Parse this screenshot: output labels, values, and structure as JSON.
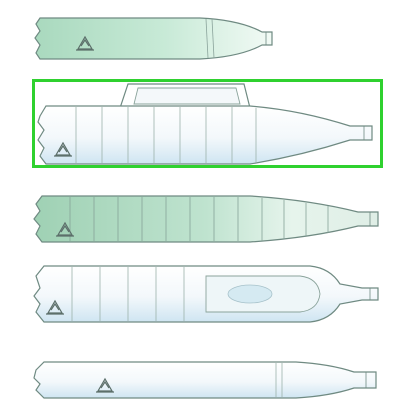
{
  "colors": {
    "outline": "#6f8a82",
    "green_tint": "#bfe3cf",
    "blue_tint": "#dcecf6",
    "white": "#ffffff",
    "selection": "#2fd12f"
  },
  "bottles": [
    {
      "id": "bottle-1",
      "style": "smooth-tall",
      "tint": "green",
      "selected": false
    },
    {
      "id": "bottle-2",
      "style": "ribbed-with-handle",
      "tint": "blue",
      "selected": true
    },
    {
      "id": "bottle-3",
      "style": "ribbed-large",
      "tint": "green",
      "selected": false
    },
    {
      "id": "bottle-4",
      "style": "paneled-grip",
      "tint": "blue",
      "selected": false
    },
    {
      "id": "bottle-5",
      "style": "smooth-long",
      "tint": "blue",
      "selected": false
    }
  ],
  "icons": {
    "recycle": "recycle-icon"
  }
}
